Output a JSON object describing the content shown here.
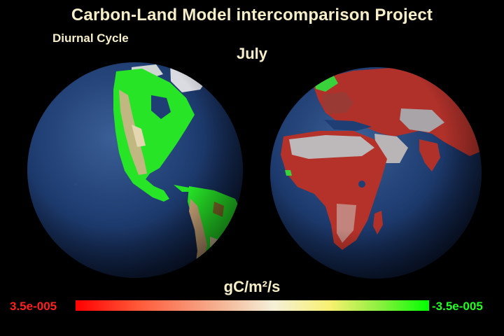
{
  "header": {
    "title": "Carbon-Land Model intercomparison Project",
    "subtitle": "Diurnal Cycle",
    "month": "July"
  },
  "colorbar": {
    "units": "gC/m²/s",
    "min_label": "3.5e-005",
    "max_label": "-3.5e-005",
    "min_color": "#ff0000",
    "max_color": "#00ff00"
  },
  "globes": [
    {
      "view": "Western Hemisphere (Americas)",
      "dominant_flux": "uptake (green)"
    },
    {
      "view": "Eastern Hemisphere (Africa, Europe, Asia)",
      "dominant_flux": "release (red)"
    }
  ],
  "colors": {
    "background": "#000000",
    "text": "#f6eec8",
    "ocean": "#1b3a6e",
    "uptake_green": "#22e822",
    "release_red": "#b52a22"
  }
}
